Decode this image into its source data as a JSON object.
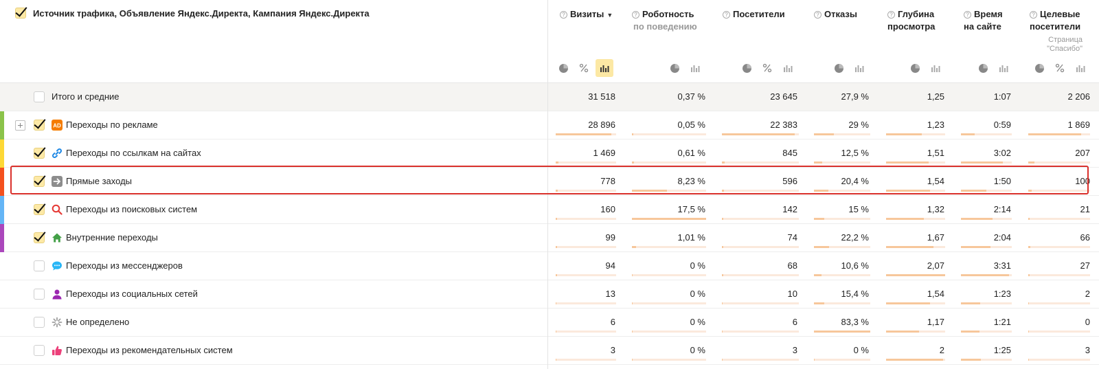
{
  "header": {
    "dimension_title": "Источник трафика, Объявление Яндекс.Директа, Кампания Яндекс.Директа",
    "metrics": [
      {
        "id": "visits",
        "title": "Визиты",
        "sort": "▼"
      },
      {
        "id": "robot",
        "title": "Роботность",
        "sub": "по поведению"
      },
      {
        "id": "visitors",
        "title": "Посетители"
      },
      {
        "id": "bounce",
        "title": "Отказы"
      },
      {
        "id": "depth",
        "title_l1": "Глубина",
        "title_l2": "просмотра"
      },
      {
        "id": "time",
        "title_l1": "Время",
        "title_l2": "на сайте"
      },
      {
        "id": "goal",
        "title_l1": "Целевые",
        "title_l2": "посетители",
        "sub_l1": "Страница",
        "sub_l2": "\"Спасибо\""
      }
    ]
  },
  "total": {
    "label": "Итого и средние",
    "values": [
      "31 518",
      "0,37 %",
      "23 645",
      "27,9 %",
      "1,25",
      "1:07",
      "2 206"
    ]
  },
  "rows": [
    {
      "label": "Переходы по рекламе",
      "icon": "ad-icon",
      "icon_text": "AD",
      "checked": true,
      "strip": "#8bc34a",
      "expand": true,
      "values": [
        "28 896",
        "0,05 %",
        "22 383",
        "29 %",
        "1,23",
        "0:59",
        "1 869"
      ],
      "bars": [
        0.92,
        0.01,
        0.95,
        0.35,
        0.6,
        0.27,
        0.85
      ]
    },
    {
      "label": "Переходы по ссылкам на сайтах",
      "icon": "link-icon",
      "checked": true,
      "strip": "#fdd835",
      "values": [
        "1 469",
        "0,61 %",
        "845",
        "12,5 %",
        "1,51",
        "3:02",
        "207"
      ],
      "bars": [
        0.05,
        0.03,
        0.04,
        0.15,
        0.72,
        0.82,
        0.1
      ]
    },
    {
      "label": "Прямые заходы",
      "icon": "arrow-right-icon",
      "checked": true,
      "strip": "#f4511e",
      "values": [
        "778",
        "8,23 %",
        "596",
        "20,4 %",
        "1,54",
        "1:50",
        "100"
      ],
      "bars": [
        0.03,
        0.47,
        0.03,
        0.25,
        0.74,
        0.5,
        0.05
      ]
    },
    {
      "label": "Переходы из поисковых систем",
      "icon": "search-icon",
      "checked": true,
      "strip": "#64b5f6",
      "values": [
        "160",
        "17,5 %",
        "142",
        "15 %",
        "1,32",
        "2:14",
        "21"
      ],
      "bars": [
        0.01,
        1.0,
        0.01,
        0.18,
        0.64,
        0.62,
        0.01
      ]
    },
    {
      "label": "Внутренние переходы",
      "icon": "home-icon",
      "checked": true,
      "strip": "#ab47bc",
      "values": [
        "99",
        "1,01 %",
        "74",
        "22,2 %",
        "1,67",
        "2:04",
        "66"
      ],
      "bars": [
        0.01,
        0.06,
        0.01,
        0.27,
        0.8,
        0.58,
        0.03
      ]
    },
    {
      "label": "Переходы из мессенджеров",
      "icon": "chat-icon",
      "checked": false,
      "strip": "",
      "values": [
        "94",
        "0 %",
        "68",
        "10,6 %",
        "2,07",
        "3:31",
        "27"
      ],
      "bars": [
        0.01,
        0.0,
        0.01,
        0.13,
        1.0,
        0.95,
        0.01
      ]
    },
    {
      "label": "Переходы из социальных сетей",
      "icon": "social-icon",
      "checked": false,
      "strip": "",
      "values": [
        "13",
        "0 %",
        "10",
        "15,4 %",
        "1,54",
        "1:23",
        "2"
      ],
      "bars": [
        0.0,
        0.0,
        0.0,
        0.18,
        0.74,
        0.38,
        0.0
      ]
    },
    {
      "label": "Не определено",
      "icon": "spinner-icon",
      "checked": false,
      "strip": "",
      "values": [
        "6",
        "0 %",
        "6",
        "83,3 %",
        "1,17",
        "1:21",
        "0"
      ],
      "bars": [
        0.0,
        0.0,
        0.0,
        1.0,
        0.56,
        0.37,
        0.0
      ]
    },
    {
      "label": "Переходы из рекомендательных систем",
      "icon": "thumbs-up-icon",
      "checked": false,
      "strip": "",
      "values": [
        "3",
        "0 %",
        "3",
        "0 %",
        "2",
        "1:25",
        "3"
      ],
      "bars": [
        0.0,
        0.0,
        0.0,
        0.0,
        0.97,
        0.39,
        0.0
      ]
    }
  ]
}
